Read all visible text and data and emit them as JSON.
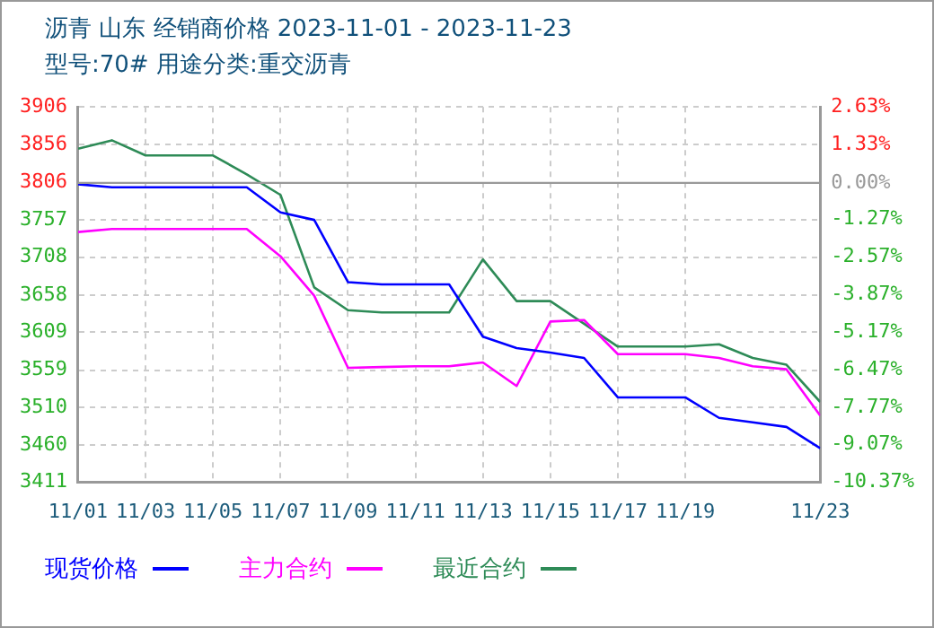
{
  "chart_data": {
    "type": "line",
    "title": "沥青  山东 经销商价格 2023-11-01 - 2023-11-23",
    "subtitle": "型号:70# 用途分类:重交沥青",
    "x": [
      "2023-11-01",
      "2023-11-02",
      "2023-11-03",
      "2023-11-04",
      "2023-11-05",
      "2023-11-06",
      "2023-11-07",
      "2023-11-08",
      "2023-11-09",
      "2023-11-10",
      "2023-11-11",
      "2023-11-12",
      "2023-11-13",
      "2023-11-14",
      "2023-11-15",
      "2023-11-16",
      "2023-11-17",
      "2023-11-18",
      "2023-11-19",
      "2023-11-20",
      "2023-11-21",
      "2023-11-22",
      "2023-11-23"
    ],
    "series": [
      {
        "name": "现货价格",
        "color": "#0000ff",
        "values": [
          3804,
          3800,
          3800,
          3800,
          3800,
          3800,
          3767,
          3757,
          3675,
          3672,
          3672,
          3672,
          3603,
          3588,
          3582,
          3575,
          3523,
          3523,
          3523,
          3496,
          3490,
          3484,
          3456
        ]
      },
      {
        "name": "主力合约",
        "color": "#ff00ff",
        "values": [
          3741,
          3745,
          3745,
          3745,
          3745,
          3745,
          3709,
          3657,
          3562,
          3563,
          3564,
          3564,
          3569,
          3538,
          3623,
          3625,
          3580,
          3580,
          3580,
          3575,
          3564,
          3560,
          3499
        ]
      },
      {
        "name": "最近合约",
        "color": "#2e8b57",
        "values": [
          3851,
          3862,
          3842,
          3842,
          3842,
          3817,
          3790,
          3668,
          3638,
          3635,
          3635,
          3635,
          3705,
          3650,
          3650,
          3620,
          3590,
          3590,
          3590,
          3593,
          3575,
          3566,
          3517
        ]
      }
    ],
    "xlim": [
      "2023-11-01",
      "2023-11-23"
    ],
    "xticks": [
      {
        "value": "2023-11-01",
        "label": "11/01"
      },
      {
        "value": "2023-11-03",
        "label": "11/03"
      },
      {
        "value": "2023-11-05",
        "label": "11/05"
      },
      {
        "value": "2023-11-07",
        "label": "11/07"
      },
      {
        "value": "2023-11-09",
        "label": "11/09"
      },
      {
        "value": "2023-11-11",
        "label": "11/11"
      },
      {
        "value": "2023-11-13",
        "label": "11/13"
      },
      {
        "value": "2023-11-15",
        "label": "11/15"
      },
      {
        "value": "2023-11-17",
        "label": "11/17"
      },
      {
        "value": "2023-11-19",
        "label": "11/19"
      },
      {
        "value": "2023-11-23",
        "label": "11/23"
      }
    ],
    "ylim": [
      3411,
      3906
    ],
    "yticks": [
      3411,
      3460,
      3510,
      3559,
      3609,
      3658,
      3708,
      3757,
      3806,
      3856,
      3906
    ],
    "y2lim": [
      -10.37,
      2.63
    ],
    "y2ticks": [
      {
        "value": -10.37,
        "label": "-10.37%"
      },
      {
        "value": -9.07,
        "label": "-9.07%"
      },
      {
        "value": -7.77,
        "label": "-7.77%"
      },
      {
        "value": -6.47,
        "label": "-6.47%"
      },
      {
        "value": -5.17,
        "label": "-5.17%"
      },
      {
        "value": -3.87,
        "label": "-3.87%"
      },
      {
        "value": -2.57,
        "label": "-2.57%"
      },
      {
        "value": -1.27,
        "label": "-1.27%"
      },
      {
        "value": 0,
        "label": "0.00%"
      },
      {
        "value": 1.33,
        "label": "1.33%"
      },
      {
        "value": 2.63,
        "label": "2.63%"
      }
    ],
    "ref_lines": [
      {
        "axis": "y2",
        "value": 0,
        "color": "#999999"
      }
    ],
    "grid": true,
    "legend": "bottom",
    "marker": "none",
    "line_style": "solid"
  }
}
